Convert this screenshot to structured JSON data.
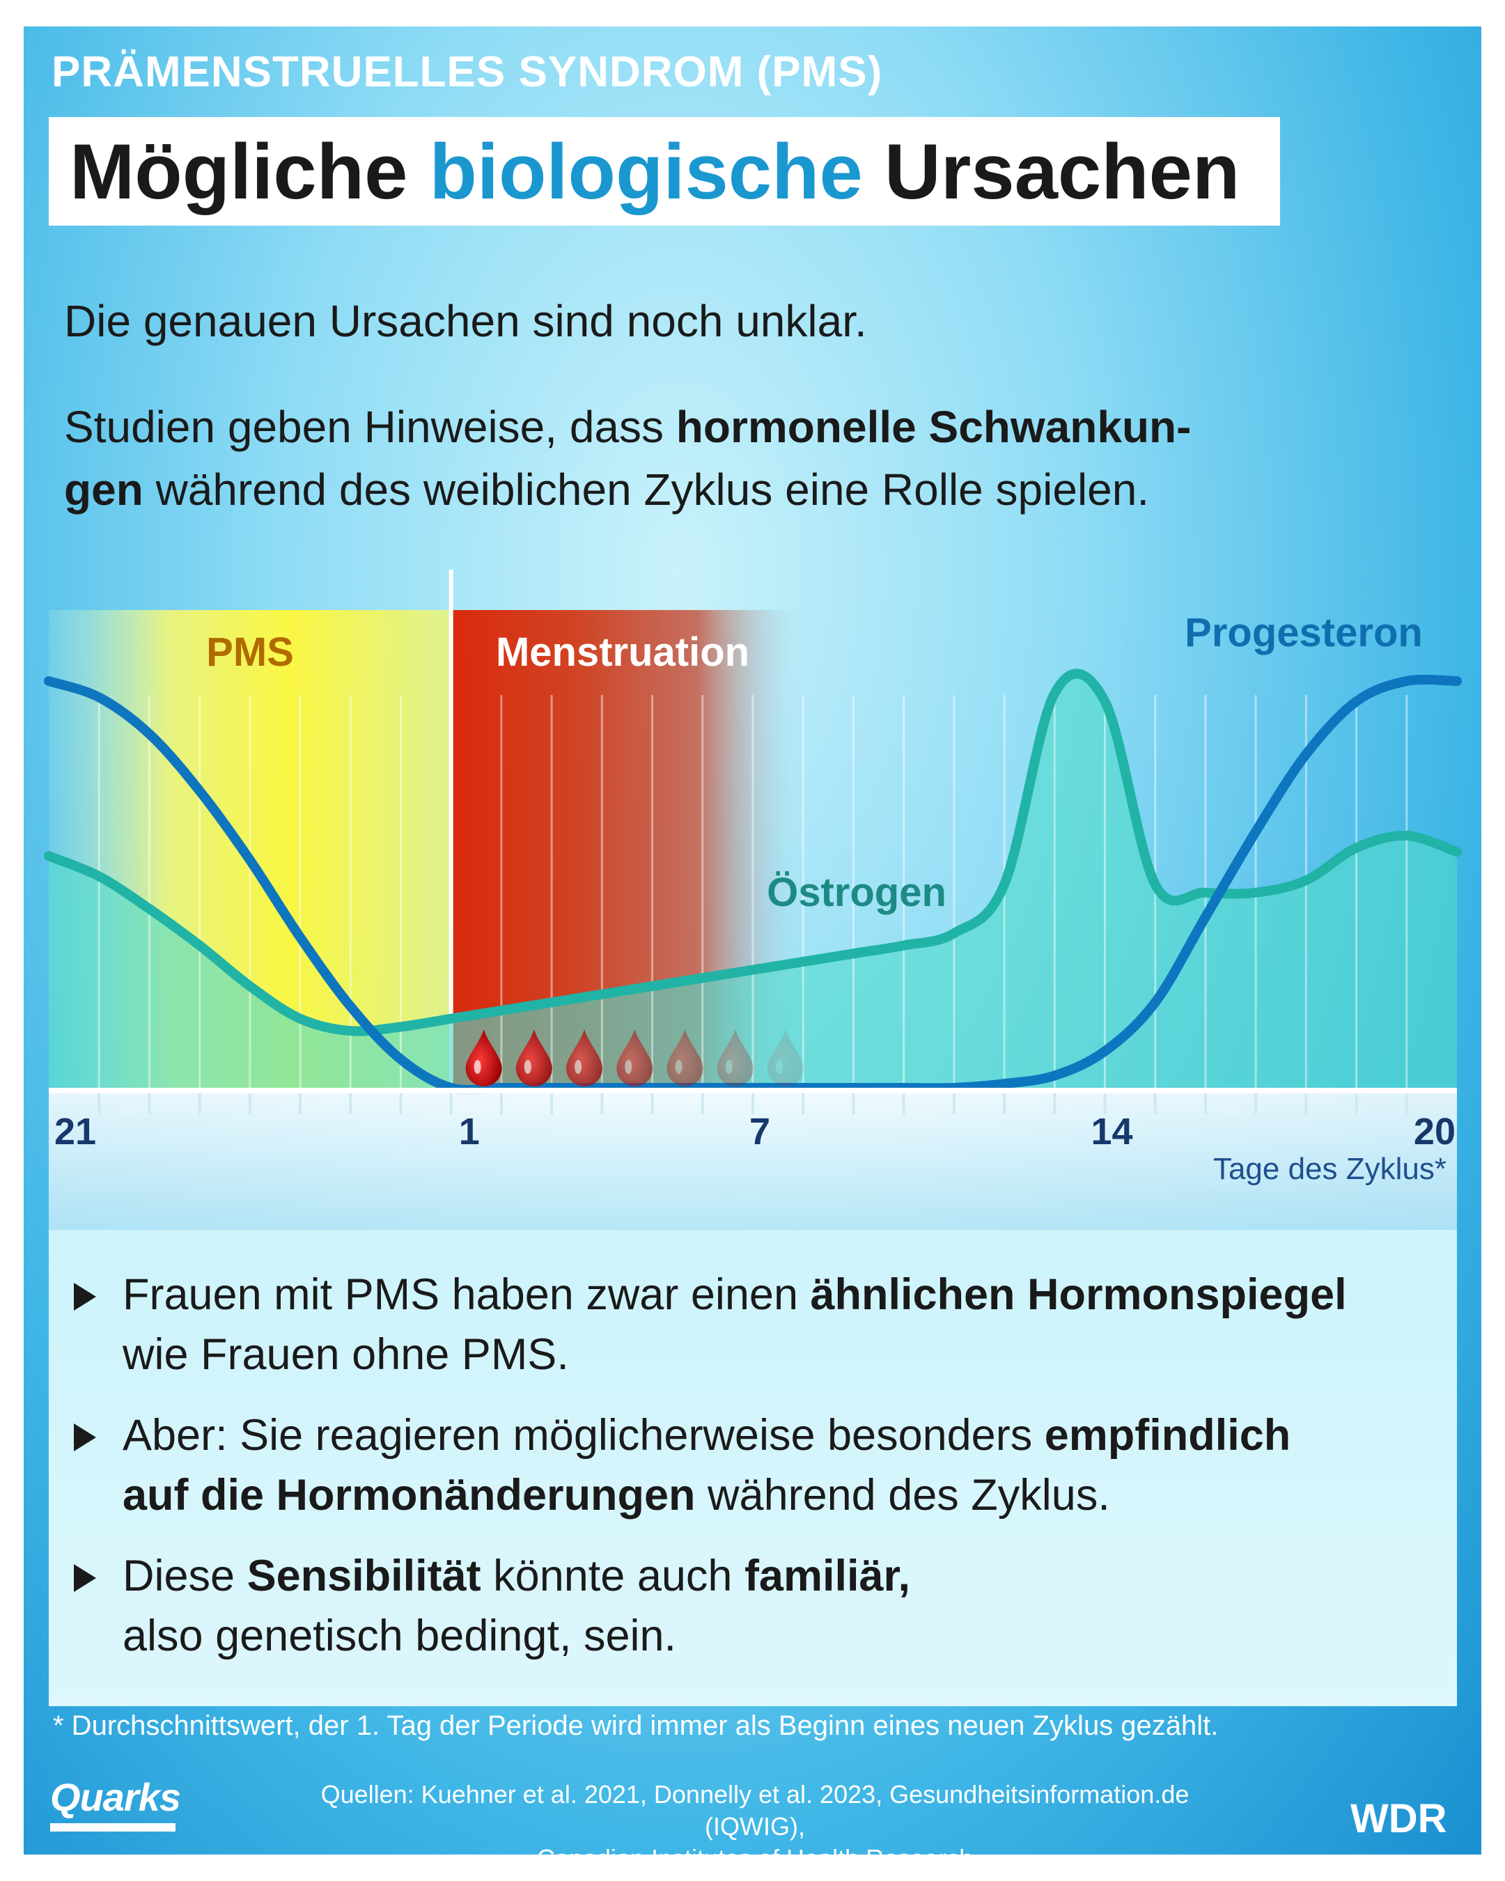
{
  "header": {
    "kicker": "PRÄMENSTRUELLES SYNDROM (PMS)",
    "title_part1": "Mögliche ",
    "title_highlight": "biologische",
    "title_part2": " Ursachen"
  },
  "intro": {
    "line1": "Die genauen Ursachen sind noch unklar.",
    "p2_a": "Studien geben Hinweise, dass ",
    "p2_bold": "hormonelle Schwankun-",
    "p2_bold2": "gen",
    "p2_b": " während des weiblichen Zyklus eine Rolle spielen."
  },
  "chart_data": {
    "type": "line",
    "xlabel": "Tage des Zyklus*",
    "x_ticks": [
      "21",
      "1",
      "7",
      "14",
      "20"
    ],
    "x_tick_days": [
      21,
      1,
      7,
      14,
      20
    ],
    "phases": [
      {
        "name": "PMS",
        "from_index": 0,
        "to_index": 8,
        "color": "#f5ec3a"
      },
      {
        "name": "Menstruation",
        "from_index": 8,
        "to_index": 15,
        "color": "#e23a1c"
      }
    ],
    "x_index_range": [
      0,
      28
    ],
    "ylim": [
      0,
      1
    ],
    "series": [
      {
        "name": "Östrogen",
        "color": "#21b3a6",
        "fill": "#52dccc",
        "points": [
          [
            0,
            0.57
          ],
          [
            1,
            0.52
          ],
          [
            2,
            0.44
          ],
          [
            3,
            0.35
          ],
          [
            4,
            0.25
          ],
          [
            5,
            0.17
          ],
          [
            6,
            0.14
          ],
          [
            7,
            0.15
          ],
          [
            8,
            0.17
          ],
          [
            9,
            0.19
          ],
          [
            10,
            0.21
          ],
          [
            11,
            0.23
          ],
          [
            12,
            0.25
          ],
          [
            13,
            0.27
          ],
          [
            14,
            0.29
          ],
          [
            15,
            0.31
          ],
          [
            16,
            0.33
          ],
          [
            17,
            0.35
          ],
          [
            18,
            0.38
          ],
          [
            19,
            0.5
          ],
          [
            20,
            0.97
          ],
          [
            21,
            0.95
          ],
          [
            22,
            0.5
          ],
          [
            23,
            0.48
          ],
          [
            24,
            0.48
          ],
          [
            25,
            0.51
          ],
          [
            26,
            0.59
          ],
          [
            27,
            0.62
          ],
          [
            28,
            0.58
          ]
        ]
      },
      {
        "name": "Progesteron",
        "color": "#0e76bf",
        "points": [
          [
            0,
            1.0
          ],
          [
            1,
            0.96
          ],
          [
            2,
            0.87
          ],
          [
            3,
            0.73
          ],
          [
            4,
            0.56
          ],
          [
            5,
            0.37
          ],
          [
            6,
            0.2
          ],
          [
            7,
            0.07
          ],
          [
            8,
            0.0
          ],
          [
            9,
            0.0
          ],
          [
            10,
            0.0
          ],
          [
            11,
            0.0
          ],
          [
            12,
            0.0
          ],
          [
            13,
            0.0
          ],
          [
            14,
            0.0
          ],
          [
            15,
            0.0
          ],
          [
            16,
            0.0
          ],
          [
            17,
            0.0
          ],
          [
            18,
            0.0
          ],
          [
            19,
            0.01
          ],
          [
            20,
            0.03
          ],
          [
            21,
            0.09
          ],
          [
            22,
            0.21
          ],
          [
            23,
            0.42
          ],
          [
            24,
            0.63
          ],
          [
            25,
            0.82
          ],
          [
            26,
            0.95
          ],
          [
            27,
            1.0
          ],
          [
            28,
            1.0
          ]
        ]
      }
    ],
    "drops": 7
  },
  "bullets": [
    {
      "a": "Frauen mit PMS haben zwar einen ",
      "b": "ähnlichen Hormonspiegel",
      "c": "",
      "d": "wie Frauen ohne PMS."
    },
    {
      "a": "Aber: Sie reagieren möglicherweise besonders ",
      "b": "empfindlich",
      "c": "auf die Hormonänderungen",
      "d": " während des Zyklus."
    },
    {
      "a": "Diese ",
      "b": "Sensibilität",
      "c": " könnte auch ",
      "d": "familiär,",
      "e": "also genetisch bedingt, sein."
    }
  ],
  "footnote": "* Durchschnittswert, der 1. Tag der Periode wird immer als Beginn eines neuen Zyklus gezählt.",
  "sources": {
    "line1": "Quellen: Kuehner et al. 2021, Donnelly et al. 2023, Gesundheitsinformation.de (IQWIG),",
    "line2": "Canadian Institutes of Health Research"
  },
  "logos": {
    "left": "Quarks",
    "right": "WDR"
  }
}
